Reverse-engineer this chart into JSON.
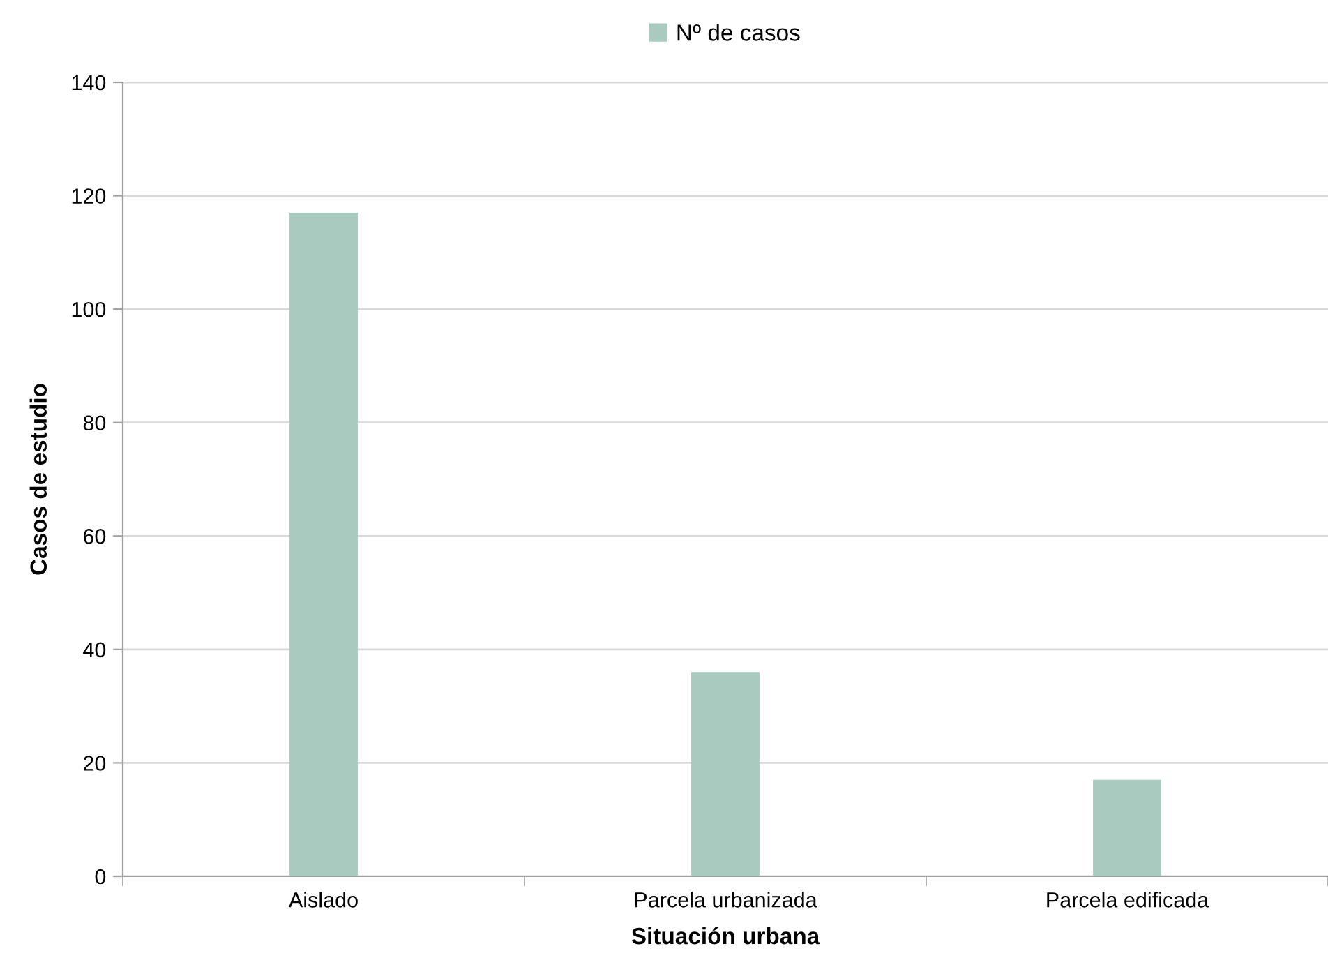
{
  "chart_data": {
    "type": "bar",
    "xlabel": "Situación urbana",
    "ylabel": "Casos de estudio",
    "categories": [
      "Aislado",
      "Parcela urbanizada",
      "Parcela edificada"
    ],
    "series": [
      {
        "name": "Nº de casos",
        "color": "#a9cbbf",
        "values": [
          117,
          36,
          17
        ]
      }
    ],
    "ylim": [
      0,
      140
    ],
    "yticks": [
      0,
      20,
      40,
      60,
      80,
      100,
      120,
      140
    ],
    "grid": "y",
    "legend": "top"
  }
}
